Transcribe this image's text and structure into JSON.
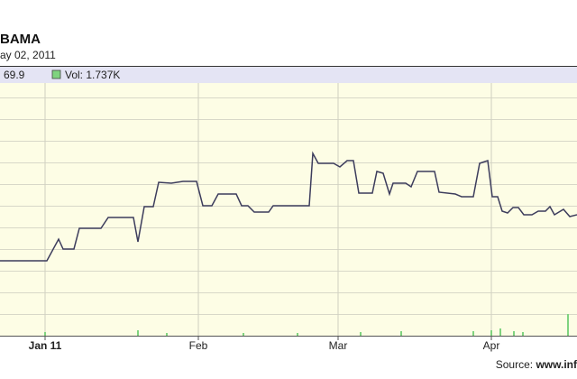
{
  "chart_data": {
    "type": "line",
    "title": "BAMA",
    "subtitle": "ay 02, 2011",
    "source_prefix": "Source: ",
    "source_site": "www.inf",
    "xlim": [
      0,
      64
    ],
    "ylim": [
      0,
      28
    ],
    "xticks": [
      {
        "value": 5,
        "label": "Jan 11"
      },
      {
        "value": 22,
        "label": "Feb"
      },
      {
        "value": 37.5,
        "label": "Mar"
      },
      {
        "value": 54.5,
        "label": "Apr"
      }
    ],
    "grid": true,
    "series": [
      {
        "name": "69.9",
        "color": "#3c3c5c",
        "x": [
          0,
          5.2,
          6.5,
          7,
          8.2,
          8.8,
          11.2,
          12,
          14.8,
          15.3,
          16,
          17,
          17.6,
          19,
          20.3,
          21.8,
          22.5,
          23.5,
          24.2,
          26.2,
          26.8,
          27.5,
          28.2,
          29.8,
          30.3,
          34.3,
          34.7,
          35.3,
          37,
          37.7,
          38.5,
          39.2,
          39.8,
          41.3,
          41.8,
          42.5,
          43.2,
          43.6,
          45,
          45.6,
          46.3,
          48.2,
          48.7,
          50.5,
          51.2,
          52.5,
          53.2,
          54.1,
          54.6,
          55.2,
          55.7,
          56.3,
          56.9,
          57.5,
          58.1,
          59,
          59.7,
          60.5,
          61,
          61.5,
          62.5,
          63.2,
          64
        ],
        "values": [
          8.3,
          8.3,
          10.7,
          9.6,
          9.6,
          11.9,
          11.9,
          13.1,
          13.1,
          10.4,
          14.3,
          14.3,
          17,
          16.9,
          17.1,
          17.1,
          14.4,
          14.4,
          15.7,
          15.7,
          14.4,
          14.4,
          13.7,
          13.7,
          14.4,
          14.4,
          20.2,
          19.1,
          19.1,
          18.7,
          19.4,
          19.4,
          15.8,
          15.8,
          18.2,
          18,
          15.7,
          16.9,
          16.9,
          16.5,
          18.2,
          18.2,
          15.9,
          15.7,
          15.4,
          15.4,
          19.1,
          19.4,
          15.4,
          15.4,
          13.8,
          13.6,
          14.2,
          14.2,
          13.4,
          13.4,
          13.8,
          13.8,
          14.3,
          13.4,
          14,
          13.2,
          13.4
        ]
      },
      {
        "name": "Vol: 1.737K",
        "color": "#7fd37f",
        "x": [
          5,
          15.3,
          18.5,
          27,
          33,
          40,
          44.5,
          52.5,
          54.5,
          55.5,
          57,
          58,
          63
        ],
        "values": [
          0.4,
          0.6,
          0.3,
          0.3,
          0.3,
          0.4,
          0.5,
          0.5,
          0.6,
          0.8,
          0.5,
          0.4,
          2.4
        ]
      }
    ]
  }
}
